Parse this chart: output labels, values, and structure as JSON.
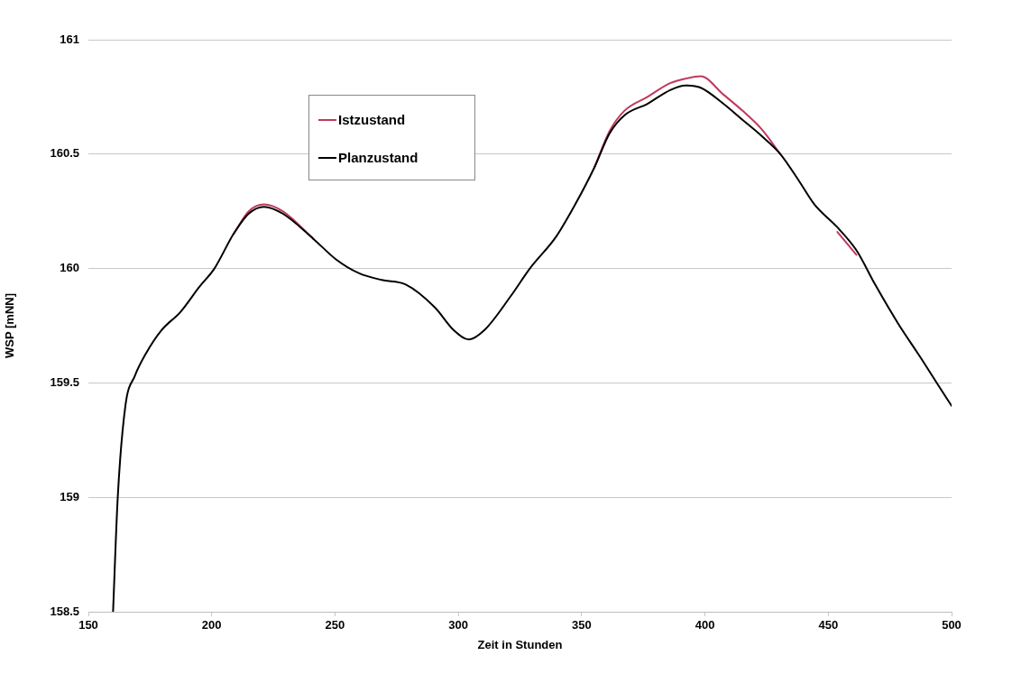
{
  "chart_data": {
    "type": "line",
    "xlabel": "Zeit in Stunden",
    "ylabel": "WSP [mNN]",
    "x": [
      160,
      161.9,
      165,
      168.8,
      173.4,
      179.6,
      187.3,
      195,
      201.1,
      208.8,
      215,
      221.2,
      228.8,
      241.2,
      250.4,
      259.6,
      268.9,
      278.7,
      290.5,
      298.2,
      304.3,
      310.5,
      321.3,
      329,
      339.7,
      347.4,
      355.1,
      361.3,
      367.4,
      376.7,
      385.9,
      392.1,
      398.3,
      407.5,
      415.2,
      422.9,
      430.6,
      438.3,
      444.4,
      453.7,
      461.4,
      469,
      478.3,
      487.5,
      495.2,
      500
    ],
    "series": [
      {
        "name": "Istzustand",
        "color": "#c0395a",
        "values": [
          null,
          null,
          null,
          null,
          null,
          null,
          null,
          null,
          null,
          160.15,
          160.25,
          160.28,
          160.25,
          160.13,
          null,
          null,
          null,
          null,
          null,
          null,
          null,
          null,
          null,
          null,
          null,
          null,
          160.44,
          160.6,
          160.69,
          160.75,
          160.81,
          160.83,
          160.84,
          160.76,
          160.69,
          160.61,
          160.5,
          null,
          null,
          160.16,
          160.06,
          null,
          null,
          null,
          null,
          null
        ]
      },
      {
        "name": "Planzustand",
        "color": "#000000",
        "values": [
          158.5,
          159.0,
          159.4,
          159.53,
          159.63,
          159.73,
          159.81,
          159.92,
          160.0,
          160.15,
          160.24,
          160.27,
          160.24,
          160.13,
          160.04,
          159.98,
          159.95,
          159.93,
          159.83,
          159.73,
          159.69,
          159.73,
          159.88,
          160.0,
          160.14,
          160.28,
          160.44,
          160.59,
          160.67,
          160.72,
          160.78,
          160.8,
          160.79,
          160.72,
          160.65,
          160.58,
          160.5,
          160.38,
          160.28,
          160.18,
          160.08,
          159.93,
          159.76,
          159.61,
          159.48,
          159.4
        ]
      }
    ],
    "xlim": [
      150,
      500
    ],
    "xticks": [
      150,
      200,
      250,
      300,
      350,
      400,
      450,
      500
    ],
    "ylim": [
      158.5,
      161
    ],
    "yticks": [
      158.5,
      159,
      159.5,
      160,
      160.5,
      161
    ],
    "grid": "y",
    "legend": "top left",
    "marker": "none",
    "line_style": "solid"
  }
}
